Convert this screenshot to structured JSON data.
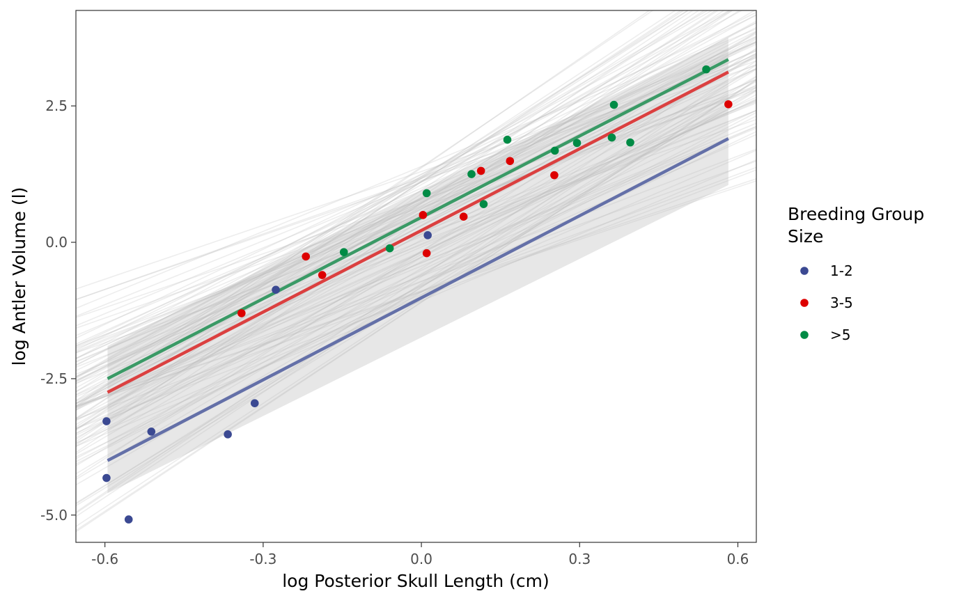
{
  "chart_data": {
    "type": "scatter",
    "title": "",
    "xlabel": "log Posterior Skull Length (cm)",
    "ylabel": "log Antler Volume (l)",
    "xlim": [
      -0.655,
      0.635
    ],
    "ylim": [
      -5.5,
      4.25
    ],
    "x_ticks": [
      -0.6,
      -0.3,
      0.0,
      0.3,
      0.6
    ],
    "x_tick_labels": [
      "-0.6",
      "-0.3",
      "0.0",
      "0.3",
      "0.6"
    ],
    "y_ticks": [
      -5.0,
      -2.5,
      0.0,
      2.5
    ],
    "y_tick_labels": [
      "-5.0",
      "-2.5",
      "0.0",
      "2.5"
    ],
    "grid": false,
    "legend": {
      "title": "Breeding Group\nSize",
      "title_lines": [
        "Breeding Group",
        "Size"
      ],
      "placement": "right"
    },
    "series": [
      {
        "name": "1-2",
        "color": "#3B4992",
        "line_color": "#6470A8",
        "points": [
          {
            "x": -0.597,
            "y": -3.28
          },
          {
            "x": -0.597,
            "y": -4.32
          },
          {
            "x": -0.555,
            "y": -5.08
          },
          {
            "x": -0.512,
            "y": -3.47
          },
          {
            "x": -0.367,
            "y": -3.52
          },
          {
            "x": -0.316,
            "y": -2.95
          },
          {
            "x": -0.276,
            "y": -0.87
          },
          {
            "x": 0.012,
            "y": 0.13
          }
        ],
        "fit": {
          "x": [
            -0.595,
            0.582
          ],
          "y": [
            -4.0,
            1.9
          ]
        },
        "band": {
          "x": [
            -0.595,
            0.582
          ],
          "lower": [
            -4.6,
            1.05
          ],
          "upper": [
            -1.9,
            3.75
          ]
        }
      },
      {
        "name": "3-5",
        "color": "#DD0000",
        "line_color": "#DB4040",
        "points": [
          {
            "x": -0.341,
            "y": -1.3
          },
          {
            "x": -0.219,
            "y": -0.26
          },
          {
            "x": -0.188,
            "y": -0.6
          },
          {
            "x": 0.003,
            "y": 0.5
          },
          {
            "x": 0.01,
            "y": -0.2
          },
          {
            "x": 0.08,
            "y": 0.47
          },
          {
            "x": 0.113,
            "y": 1.31
          },
          {
            "x": 0.168,
            "y": 1.49
          },
          {
            "x": 0.252,
            "y": 1.23
          },
          {
            "x": 0.582,
            "y": 2.53
          }
        ],
        "fit": {
          "x": [
            -0.595,
            0.582
          ],
          "y": [
            -2.75,
            3.12
          ]
        }
      },
      {
        "name": ">5",
        "color": "#008B45",
        "line_color": "#3A9A66",
        "points": [
          {
            "x": -0.147,
            "y": -0.18
          },
          {
            "x": -0.06,
            "y": -0.11
          },
          {
            "x": 0.01,
            "y": 0.9
          },
          {
            "x": 0.095,
            "y": 1.25
          },
          {
            "x": 0.118,
            "y": 0.7
          },
          {
            "x": 0.163,
            "y": 1.88
          },
          {
            "x": 0.253,
            "y": 1.68
          },
          {
            "x": 0.295,
            "y": 1.82
          },
          {
            "x": 0.361,
            "y": 1.92
          },
          {
            "x": 0.365,
            "y": 2.52
          },
          {
            "x": 0.396,
            "y": 1.83
          },
          {
            "x": 0.54,
            "y": 3.17
          }
        ],
        "fit": {
          "x": [
            -0.595,
            0.582
          ],
          "y": [
            -2.5,
            3.35
          ]
        }
      }
    ],
    "posterior_draws": {
      "color": "#BEBEBE",
      "opacity": 0.28,
      "count": 110,
      "x_range": [
        -0.655,
        0.635
      ],
      "intercept_range": [
        -1.1,
        1.4
      ],
      "slope_range": [
        3.2,
        6.7
      ],
      "seed": 7
    }
  }
}
